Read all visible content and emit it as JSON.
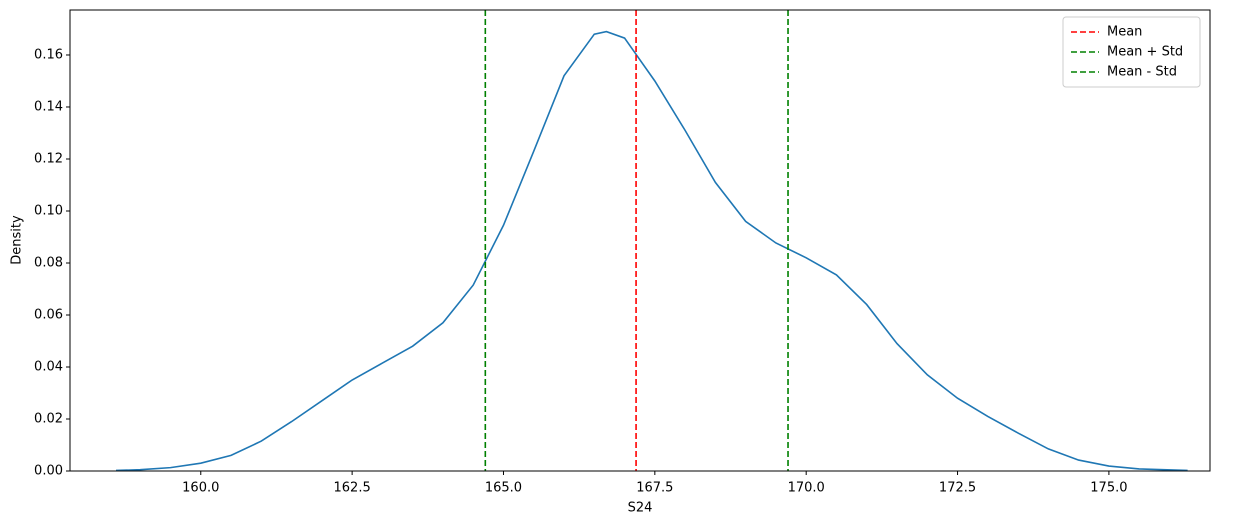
{
  "chart_data": {
    "type": "line",
    "xlabel": "S24",
    "ylabel": "Density",
    "x": [
      158.6,
      159.0,
      159.5,
      160.0,
      160.5,
      161.0,
      161.5,
      162.0,
      162.5,
      163.0,
      163.5,
      164.0,
      164.5,
      165.0,
      165.5,
      166.0,
      166.5,
      166.7,
      167.0,
      167.5,
      168.0,
      168.5,
      169.0,
      169.5,
      170.0,
      170.5,
      171.0,
      171.5,
      172.0,
      172.5,
      173.0,
      173.5,
      174.0,
      174.5,
      175.0,
      175.5,
      176.3
    ],
    "series": [
      {
        "color": "#1f77b4",
        "values": [
          0.0002,
          0.0005,
          0.0013,
          0.003,
          0.006,
          0.0115,
          0.019,
          0.027,
          0.035,
          0.0415,
          0.048,
          0.057,
          0.0715,
          0.0945,
          0.123,
          0.152,
          0.168,
          0.169,
          0.1665,
          0.15,
          0.131,
          0.111,
          0.096,
          0.0877,
          0.082,
          0.0754,
          0.064,
          0.049,
          0.037,
          0.028,
          0.021,
          0.0146,
          0.0085,
          0.0042,
          0.0019,
          0.0008,
          0.0002
        ]
      }
    ],
    "vlines": [
      {
        "name": "Mean",
        "color": "#ff0000",
        "x": 167.19
      },
      {
        "name": "Mean + Std",
        "color": "#008000",
        "x": 169.7
      },
      {
        "name": "Mean - Std",
        "color": "#008000",
        "x": 164.7
      }
    ],
    "xlim": [
      157.84,
      176.67
    ],
    "ylim": [
      0,
      0.1773
    ],
    "xticks": [
      {
        "value": 160,
        "label": "160.0"
      },
      162.5,
      {
        "value": 165,
        "label": "165.0"
      },
      167.5,
      {
        "value": 170,
        "label": "170.0"
      },
      172.5,
      {
        "value": 175,
        "label": "175.0"
      }
    ],
    "yticks": [
      {
        "value": 0,
        "label": "0.00"
      },
      0.02,
      0.04,
      0.06,
      0.08,
      {
        "value": 0.1,
        "label": "0.10"
      },
      0.12,
      0.14,
      0.16
    ],
    "legend": "upper right"
  }
}
